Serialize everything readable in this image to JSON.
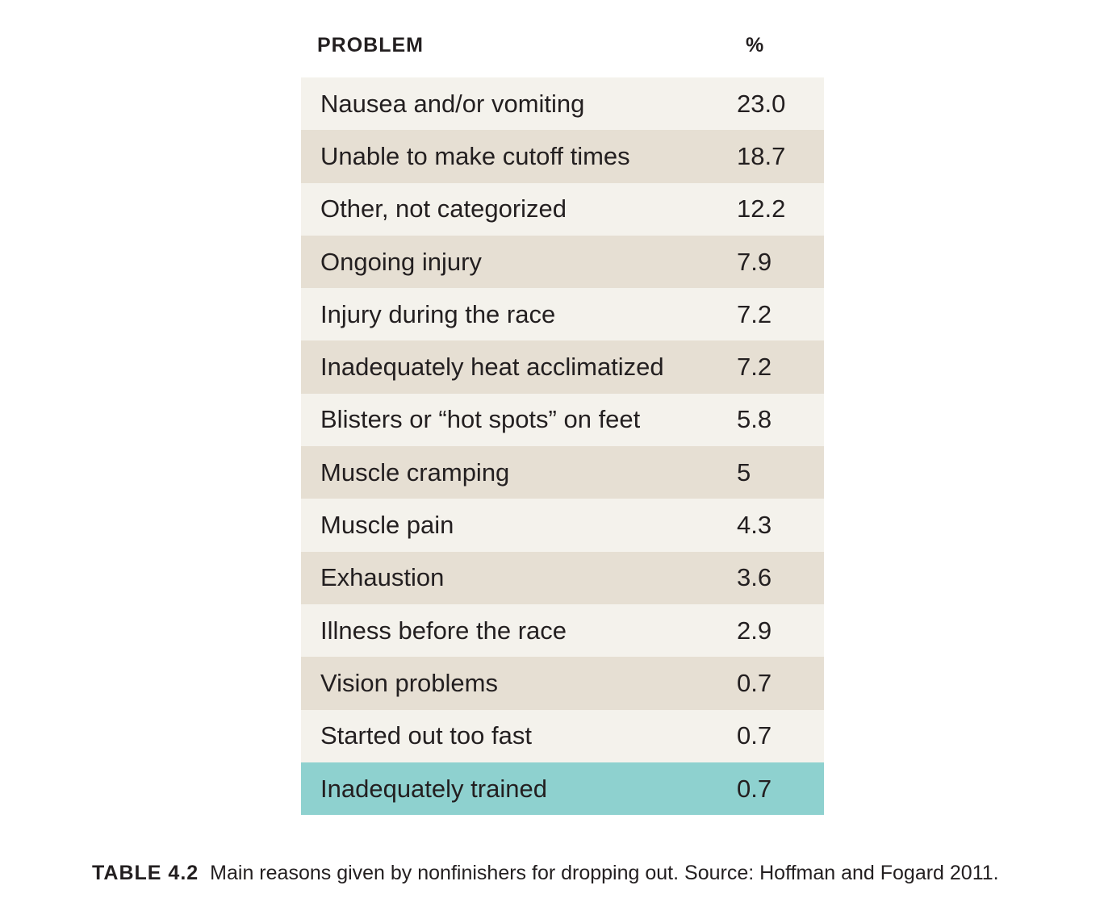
{
  "table": {
    "headers": {
      "problem": "PROBLEM",
      "percent": "%"
    },
    "rows": [
      {
        "problem": "Nausea and/or vomiting",
        "percent": "23.0"
      },
      {
        "problem": "Unable to make cutoff times",
        "percent": "18.7"
      },
      {
        "problem": "Other, not categorized",
        "percent": "12.2"
      },
      {
        "problem": "Ongoing injury",
        "percent": "7.9"
      },
      {
        "problem": "Injury during the race",
        "percent": "7.2"
      },
      {
        "problem": "Inadequately heat acclimatized",
        "percent": "7.2"
      },
      {
        "problem": "Blisters or “hot spots” on feet",
        "percent": "5.8"
      },
      {
        "problem": "Muscle cramping",
        "percent": "5"
      },
      {
        "problem": "Muscle pain",
        "percent": "4.3"
      },
      {
        "problem": "Exhaustion",
        "percent": "3.6"
      },
      {
        "problem": "Illness before the race",
        "percent": "2.9"
      },
      {
        "problem": "Vision problems",
        "percent": "0.7"
      },
      {
        "problem": "Started out too fast",
        "percent": "0.7"
      },
      {
        "problem": "Inadequately trained",
        "percent": "0.7"
      }
    ],
    "colors": {
      "row_light": "#f4f2ec",
      "row_dark": "#e6dfd3",
      "row_highlight": "#8ed1cf",
      "text": "#231f20"
    }
  },
  "caption": {
    "label": "TABLE 4.2",
    "text": "Main reasons given by nonfinishers for dropping out. Source: Hoffman and Fogard 2011."
  }
}
